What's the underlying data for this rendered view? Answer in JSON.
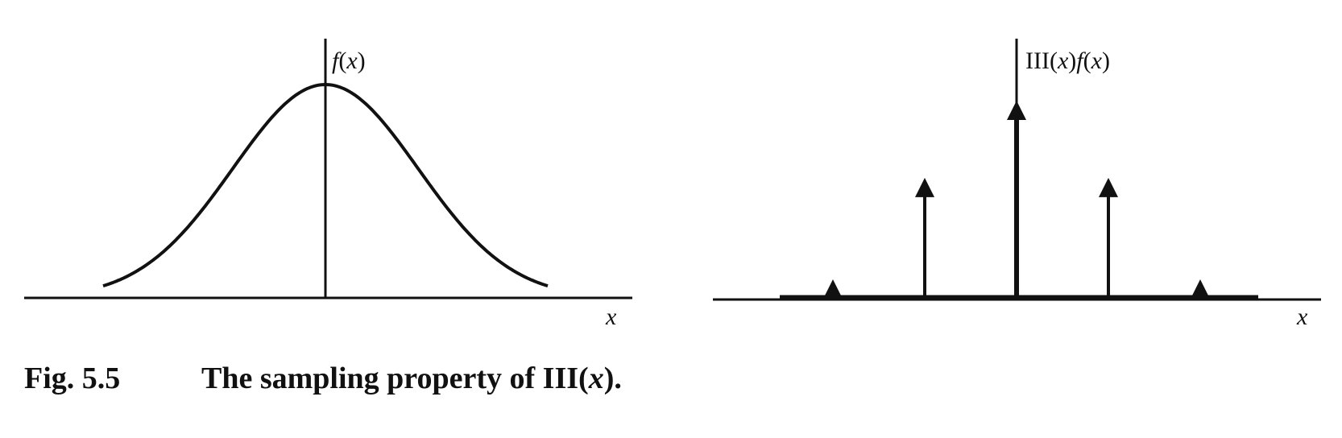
{
  "left_panel": {
    "curve_label_f": "f",
    "curve_label_x": "x",
    "curve_label_paren_open": "(",
    "curve_label_paren_close": ")",
    "axis_label": "x"
  },
  "right_panel": {
    "label_prefix": "III(",
    "label_x1": "x",
    "label_mid": ")",
    "label_f": "f",
    "label_paren_open": "(",
    "label_x2": "x",
    "label_paren_close": ")",
    "axis_label": "x"
  },
  "caption": {
    "number": "Fig. 5.5",
    "text_before": "The sampling property of III(",
    "text_italic": "x",
    "text_after": ")."
  },
  "chart_data": {
    "type": "diagram",
    "gaussian_sigma": 1.0,
    "samples": [
      {
        "x": -2,
        "height": 0.135
      },
      {
        "x": -1,
        "height": 0.607
      },
      {
        "x": 0,
        "height": 1.0
      },
      {
        "x": 1,
        "height": 0.607
      },
      {
        "x": 2,
        "height": 0.135
      }
    ]
  }
}
